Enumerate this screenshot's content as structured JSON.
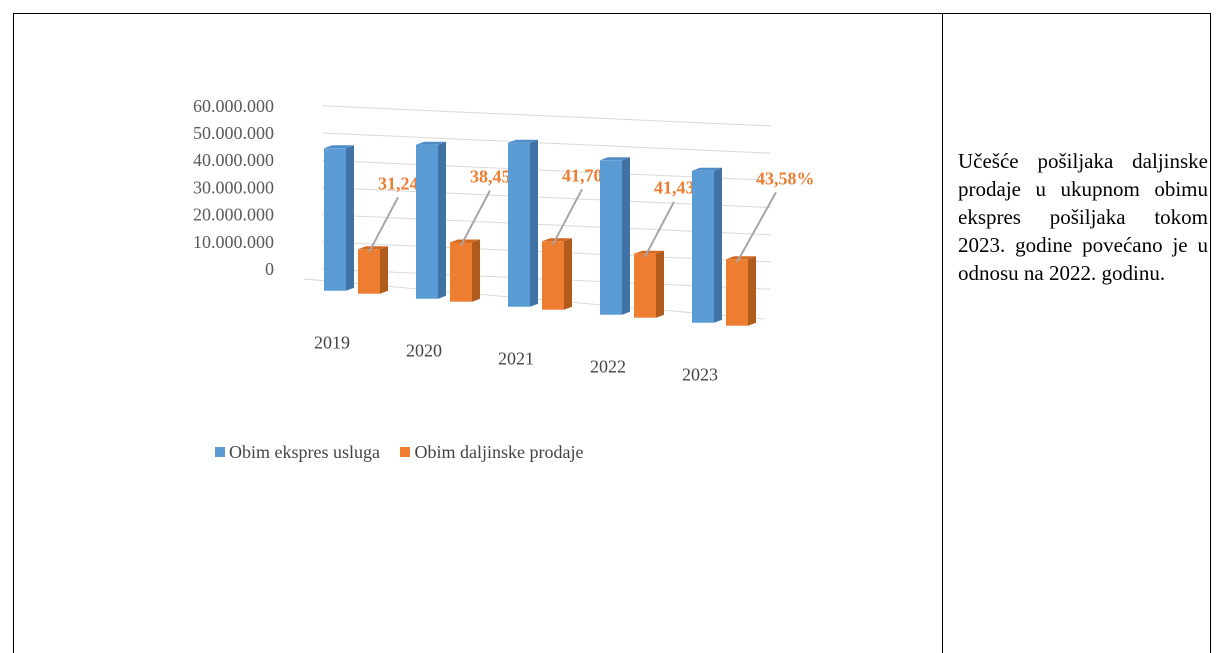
{
  "side_note": "Učešće pošiljaka daljinske prodaje u ukupnom obimu ekspres pošiljaka tokom 2023. godine povećano je u odnosu na 2022. godinu.",
  "colors": {
    "blue": "#5b9bd5",
    "blue_side": "#3f73a6",
    "blue_top": "#4f8cc6",
    "orange": "#ed7d31",
    "orange_side": "#b05a1c",
    "orange_top": "#d46a22",
    "label": "#ed7d31",
    "grid": "#d9d9d9",
    "leader": "#a6a6a6",
    "axis_text": "#595959"
  },
  "chart_data": {
    "type": "bar",
    "style": "3d-clustered-column",
    "categories": [
      "2019",
      "2020",
      "2021",
      "2022",
      "2023"
    ],
    "series": [
      {
        "name": "Obim ekspres usluga",
        "values": [
          35600000,
          38500000,
          41000000,
          38600000,
          38000000
        ]
      },
      {
        "name": "Obim daljinske prodaje",
        "values": [
          11100000,
          14800000,
          17100000,
          16000000,
          16600000
        ]
      }
    ],
    "data_labels": [
      "31,24%",
      "38,45%",
      "41,70%",
      "41,43%",
      "43,58%"
    ],
    "ylim": [
      0,
      60000000
    ],
    "yticks": [
      "0",
      "10.000.000",
      "20.000.000",
      "30.000.000",
      "40.000.000",
      "50.000.000",
      "60.000.000"
    ],
    "grid": true,
    "legend_position": "bottom"
  }
}
